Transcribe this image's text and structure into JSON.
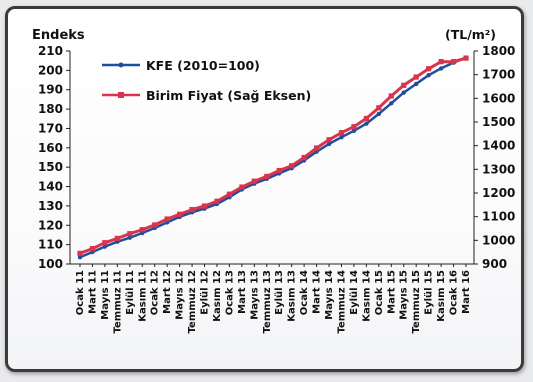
{
  "chart_data": {
    "type": "line",
    "left_axis_label": "Endeks",
    "right_axis_label": "(TL/m²)",
    "left_ylim": [
      100,
      210
    ],
    "right_ylim": [
      900,
      1800
    ],
    "left_yticks": [
      100,
      110,
      120,
      130,
      140,
      150,
      160,
      170,
      180,
      190,
      200,
      210
    ],
    "right_yticks": [
      900,
      1000,
      1100,
      1200,
      1300,
      1400,
      1500,
      1600,
      1700,
      1800
    ],
    "grid": false,
    "legend_position": "top-left",
    "x_tick_labels": [
      "Ocak 11",
      "Mart 11",
      "Mayıs 11",
      "Temmuz 11",
      "Eylül 11",
      "Kasım 11",
      "Ocak 12",
      "Mart 12",
      "Mayıs 12",
      "Temmuz 12",
      "Eylül 12",
      "Kasım 12",
      "Ocak 13",
      "Mart 13",
      "Mayıs 13",
      "Temmuz 13",
      "Eylül 13",
      "Kasım 13",
      "Ocak 14",
      "Mart 14",
      "Mayıs 14",
      "Temmuz 14",
      "Eylül 14",
      "Kasım 14",
      "Ocak 15",
      "Mart 15",
      "Mayıs 15",
      "Temmuz 15",
      "Eylül 15",
      "Kasım 15",
      "Ocak 16",
      "Mart 16"
    ],
    "series": [
      {
        "name": "KFE (2010=100)",
        "axis": "left",
        "color": "#1f4e9c",
        "values": [
          103.5,
          106.2,
          109.0,
          111.5,
          113.6,
          116.0,
          118.6,
          121.5,
          124.3,
          126.7,
          128.6,
          131.0,
          134.5,
          138.5,
          141.5,
          144.0,
          146.8,
          149.5,
          153.5,
          158.0,
          162.0,
          165.5,
          168.8,
          172.5,
          177.5,
          183.0,
          188.5,
          193.0,
          197.5,
          201.0,
          204.0,
          206.5
        ]
      },
      {
        "name": "Birim Fiyat (Sağ Eksen)",
        "axis": "right",
        "color": "#d9344e",
        "values": [
          945,
          965,
          990,
          1008,
          1028,
          1045,
          1065,
          1090,
          1110,
          1130,
          1145,
          1165,
          1195,
          1225,
          1250,
          1270,
          1295,
          1315,
          1350,
          1390,
          1425,
          1455,
          1480,
          1515,
          1560,
          1610,
          1655,
          1690,
          1725,
          1755,
          1755,
          1770
        ]
      }
    ]
  }
}
